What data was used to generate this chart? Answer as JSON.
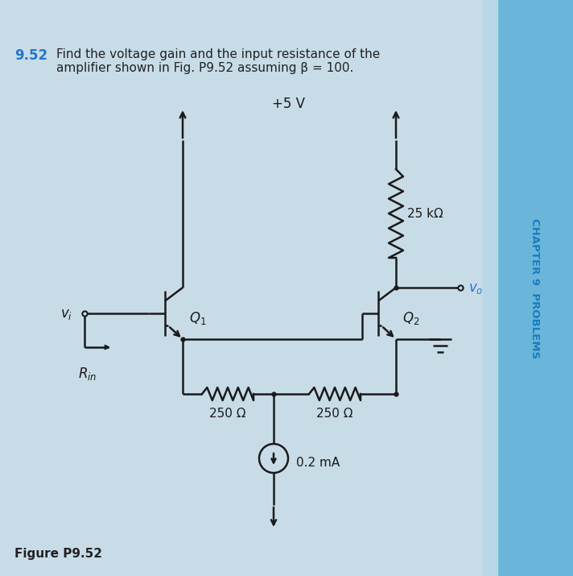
{
  "bg_color": "#c8dce8",
  "sidebar_color": "#5ab0d8",
  "line_color": "#1a1a1a",
  "title_number": "9.52",
  "title_number_color": "#2277cc",
  "title_text": "Find the voltage gain and the input resistance of the\namplifier shown in Fig. P9.52 assuming β = 100.",
  "text_color": "#222222",
  "figure_label": "Figure P9.52",
  "vcc_label": "+5 V",
  "r25k_label": "25 kΩ",
  "r250a_label": "250 Ω",
  "r250b_label": "250 Ω",
  "i_label": "0.2 mA",
  "vo_label": "v_o",
  "vi_label": "v_i",
  "rin_label": "R_{in}",
  "sidebar_text": "CHAPTER 9  PROBLEMS",
  "sidebar_text_color": "#1a7cc0",
  "q1_label": "Q_1",
  "q2_label": "Q_2",
  "figsize": [
    7.13,
    7.16
  ],
  "dpi": 100
}
